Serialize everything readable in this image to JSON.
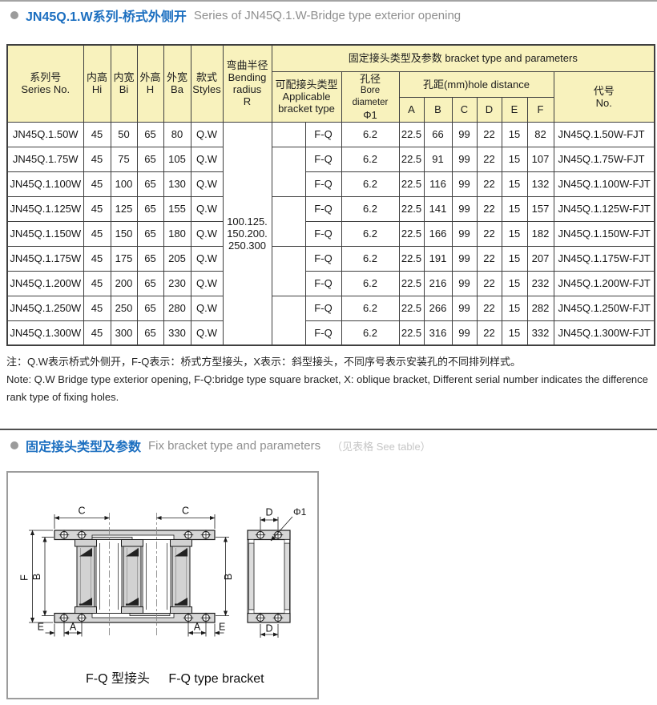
{
  "page": {
    "section1": {
      "title_zh": "JN45Q.1.W系列-桥式外侧开",
      "title_en": "Series of JN45Q.1.W-Bridge type exterior opening"
    },
    "section2": {
      "title_zh": "固定接头类型及参数",
      "title_en": "Fix bracket type and parameters",
      "note": "（见表格 See table）"
    }
  },
  "table": {
    "headers": {
      "series_zh": "系列号",
      "series_en": "Series No.",
      "hi_zh": "内高",
      "hi_en": "Hi",
      "bi_zh": "内宽",
      "bi_en": "Bi",
      "h_zh": "外高",
      "h_en": "H",
      "ba_zh": "外宽",
      "ba_en": "Ba",
      "styles_zh": "款式",
      "styles_en": "Styles",
      "radius_zh": "弯曲半径",
      "radius_en1": "Bending",
      "radius_en2": "radius",
      "radius_en3": "R",
      "group_title": "固定接头类型及参数 bracket type and parameters",
      "bracket_zh": "可配接头类型",
      "bracket_en1": "Applicable",
      "bracket_en2": "bracket type",
      "bore_zh": "孔径",
      "bore_en": "Bore diameter",
      "bore_phi": "Φ1",
      "hole_distance": "孔距(mm)hole distance",
      "hole_cols": [
        "A",
        "B",
        "C",
        "D",
        "E",
        "F"
      ],
      "code_zh": "代号",
      "code_en": "No."
    },
    "radius_lines": [
      "100.125.",
      "150.200.",
      "250.300"
    ],
    "rows": [
      {
        "series": "JN45Q.1.50W",
        "hi": "45",
        "bi": "50",
        "h": "65",
        "ba": "80",
        "style": "Q.W",
        "bracket": "F-Q",
        "bore": "6.2",
        "a": "22.5",
        "b": "66",
        "c": "99",
        "d": "22",
        "e": "15",
        "f": "82",
        "code": "JN45Q.1.50W-FJT"
      },
      {
        "series": "JN45Q.1.75W",
        "hi": "45",
        "bi": "75",
        "h": "65",
        "ba": "105",
        "style": "Q.W",
        "bracket": "F-Q",
        "bore": "6.2",
        "a": "22.5",
        "b": "91",
        "c": "99",
        "d": "22",
        "e": "15",
        "f": "107",
        "code": "JN45Q.1.75W-FJT"
      },
      {
        "series": "JN45Q.1.100W",
        "hi": "45",
        "bi": "100",
        "h": "65",
        "ba": "130",
        "style": "Q.W",
        "bracket": "F-Q",
        "bore": "6.2",
        "a": "22.5",
        "b": "116",
        "c": "99",
        "d": "22",
        "e": "15",
        "f": "132",
        "code": "JN45Q.1.100W-FJT"
      },
      {
        "series": "JN45Q.1.125W",
        "hi": "45",
        "bi": "125",
        "h": "65",
        "ba": "155",
        "style": "Q.W",
        "bracket": "F-Q",
        "bore": "6.2",
        "a": "22.5",
        "b": "141",
        "c": "99",
        "d": "22",
        "e": "15",
        "f": "157",
        "code": "JN45Q.1.125W-FJT"
      },
      {
        "series": "JN45Q.1.150W",
        "hi": "45",
        "bi": "150",
        "h": "65",
        "ba": "180",
        "style": "Q.W",
        "bracket": "F-Q",
        "bore": "6.2",
        "a": "22.5",
        "b": "166",
        "c": "99",
        "d": "22",
        "e": "15",
        "f": "182",
        "code": "JN45Q.1.150W-FJT"
      },
      {
        "series": "JN45Q.1.175W",
        "hi": "45",
        "bi": "175",
        "h": "65",
        "ba": "205",
        "style": "Q.W",
        "bracket": "F-Q",
        "bore": "6.2",
        "a": "22.5",
        "b": "191",
        "c": "99",
        "d": "22",
        "e": "15",
        "f": "207",
        "code": "JN45Q.1.175W-FJT"
      },
      {
        "series": "JN45Q.1.200W",
        "hi": "45",
        "bi": "200",
        "h": "65",
        "ba": "230",
        "style": "Q.W",
        "bracket": "F-Q",
        "bore": "6.2",
        "a": "22.5",
        "b": "216",
        "c": "99",
        "d": "22",
        "e": "15",
        "f": "232",
        "code": "JN45Q.1.200W-FJT"
      },
      {
        "series": "JN45Q.1.250W",
        "hi": "45",
        "bi": "250",
        "h": "65",
        "ba": "280",
        "style": "Q.W",
        "bracket": "F-Q",
        "bore": "6.2",
        "a": "22.5",
        "b": "266",
        "c": "99",
        "d": "22",
        "e": "15",
        "f": "282",
        "code": "JN45Q.1.250W-FJT"
      },
      {
        "series": "JN45Q.1.300W",
        "hi": "45",
        "bi": "300",
        "h": "65",
        "ba": "330",
        "style": "Q.W",
        "bracket": "F-Q",
        "bore": "6.2",
        "a": "22.5",
        "b": "316",
        "c": "99",
        "d": "22",
        "e": "15",
        "f": "332",
        "code": "JN45Q.1.300W-FJT"
      }
    ]
  },
  "notes": {
    "line_zh": "注：Q.W表示桥式外侧开，F-Q表示：桥式方型接头，X表示：斜型接头，不同序号表示安装孔的不同排列样式。",
    "line_en": "Note: Q.W Bridge type exterior opening, F-Q:bridge type square bracket, X: oblique bracket, Different serial number indicates the difference rank type of fixing holes."
  },
  "drawing": {
    "caption_zh": "F-Q 型接头",
    "caption_en": "F-Q type bracket",
    "dims": {
      "a": "A",
      "b": "B",
      "c": "C",
      "d": "D",
      "e": "E",
      "f": "F",
      "phi": "Φ1"
    }
  },
  "colors": {
    "accent_blue": "#1c6fc0",
    "header_bg": "#f8f2bd",
    "table_border": "#3f3f3f",
    "muted_gray": "#8f8f8f",
    "note_gray": "#c6c6c6"
  }
}
